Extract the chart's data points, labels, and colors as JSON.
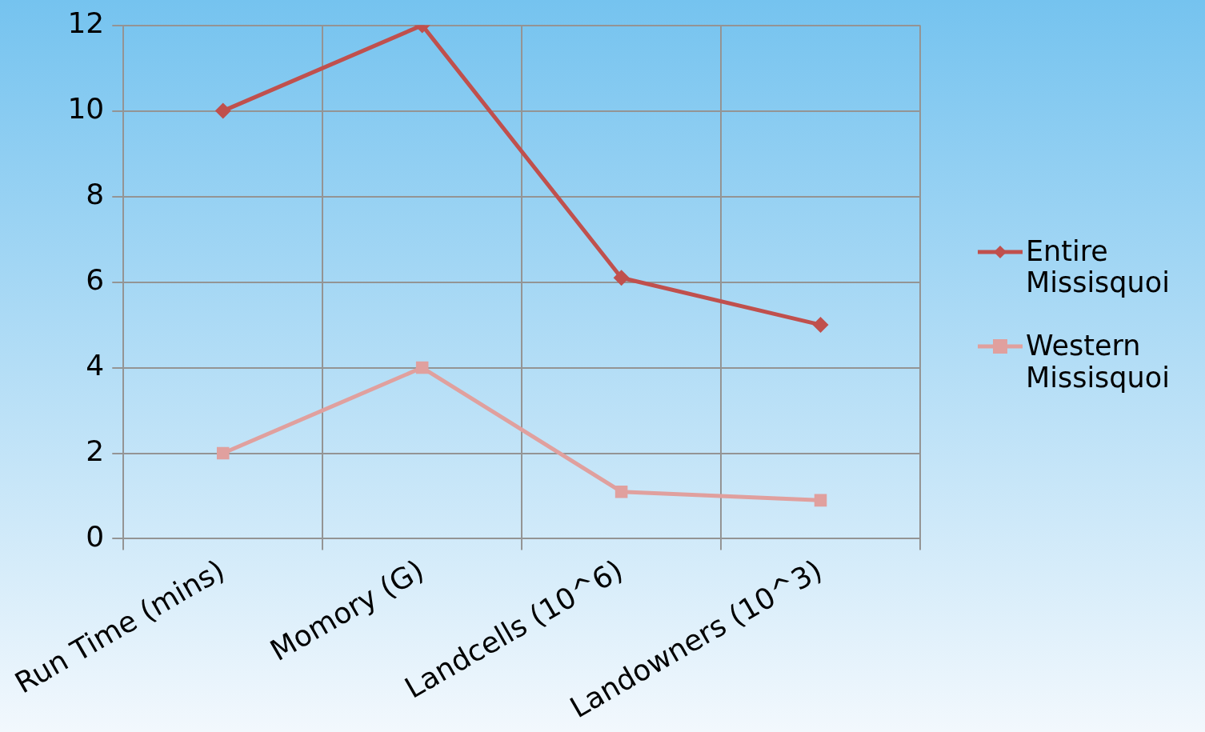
{
  "chart_data": {
    "type": "line",
    "categories": [
      "Run Time (mins)",
      "Momory (G)",
      "Landcells (10^6)",
      "Landowners (10^3)"
    ],
    "series": [
      {
        "name": "Entire Missisquoi",
        "color": "#c0504d",
        "marker": "diamond",
        "values": [
          10,
          12,
          6.1,
          5.0
        ]
      },
      {
        "name": "Western Missisquoi",
        "color": "#e0a09e",
        "marker": "square",
        "values": [
          2,
          4,
          1.1,
          0.9
        ]
      }
    ],
    "ylim": [
      0,
      12
    ],
    "yticks": [
      0,
      2,
      4,
      6,
      8,
      10,
      12
    ],
    "grid": true,
    "legend": "right",
    "line_style": "solid"
  }
}
